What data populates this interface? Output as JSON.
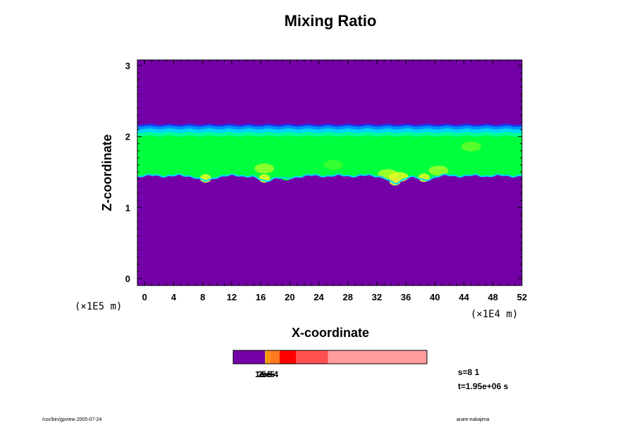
{
  "chart_data": {
    "type": "heatmap",
    "title": "Mixing Ratio",
    "xlabel": "X-coordinate",
    "ylabel": "Z-coordinate",
    "x_scale_note": "(×1E4 m)",
    "y_scale_note": "(×1E5 m)",
    "xlim": [
      -1,
      52
    ],
    "ylim": [
      -0.1,
      3.08
    ],
    "x_ticks": [
      "0",
      "4",
      "8",
      "12",
      "16",
      "20",
      "24",
      "28",
      "32",
      "36",
      "40",
      "44",
      "48",
      "52"
    ],
    "y_ticks": [
      "0",
      "1",
      "2",
      "3"
    ],
    "background_color": "#7400a8",
    "layer": {
      "top_z": 2.17,
      "base_z": 1.45,
      "fill_color": "#00ff3c",
      "top_edge_colors": [
        "#1a2cff",
        "#0090ff",
        "#00d8ff",
        "#00ff96"
      ],
      "bottom_edge_color": "#00d8ff",
      "dips": [
        {
          "x": 8.4,
          "z": 1.37,
          "color": "#c8ff28"
        },
        {
          "x": 16.5,
          "z": 1.37,
          "color": "#c8ff28"
        },
        {
          "x": 19.5,
          "z": 1.4,
          "color": "#00ff3c"
        },
        {
          "x": 34.5,
          "z": 1.33,
          "color": "#dcf03a"
        },
        {
          "x": 38.5,
          "z": 1.38,
          "color": "#c8ff28"
        }
      ],
      "bright_patches": [
        {
          "x": 16.5,
          "z": 1.55,
          "color": "#a0ff28"
        },
        {
          "x": 33.5,
          "z": 1.47,
          "color": "#b4ff28"
        },
        {
          "x": 35.0,
          "z": 1.43,
          "color": "#e6ff20"
        },
        {
          "x": 40.5,
          "z": 1.52,
          "color": "#a0ff28"
        },
        {
          "x": 45.0,
          "z": 1.86,
          "color": "#64ff28"
        },
        {
          "x": 26.0,
          "z": 1.6,
          "color": "#3cff30"
        }
      ]
    },
    "colorbar": {
      "segments": [
        {
          "color": "#7400a8",
          "fraction": 0.165
        },
        {
          "color": "#ffb400",
          "fraction": 0.008
        },
        {
          "color": "#c87800",
          "fraction": 0.004
        },
        {
          "color": "#ff9600",
          "fraction": 0.013
        },
        {
          "color": "#ff7820",
          "fraction": 0.05
        },
        {
          "color": "#ff0000",
          "fraction": 0.085
        },
        {
          "color": "#ff5050",
          "fraction": 0.165
        },
        {
          "color": "#ff9c9c",
          "fraction": 0.51
        }
      ],
      "labels": [
        "1e-5",
        "2e-5",
        "5e-4"
      ]
    }
  },
  "info": {
    "s_label": "s=8 1",
    "t_label": "t=1.95e+06 s",
    "footer_left": "/usr/bin/gpview 2005-07-24",
    "footer_right": "arare-nakajima"
  }
}
